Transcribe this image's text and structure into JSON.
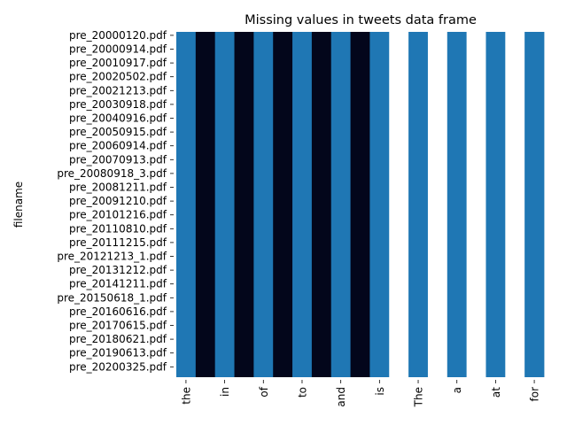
{
  "chart_data": {
    "type": "heatmap",
    "title": "Missing values in tweets data frame",
    "xlabel": "",
    "ylabel": "filename",
    "columns": [
      "the",
      "",
      "in",
      "",
      "of",
      "",
      "to",
      "",
      "and",
      "",
      "is",
      "",
      "The",
      "",
      "a",
      "",
      "at",
      "",
      "for"
    ],
    "rows": [
      "pre_20000120.pdf",
      "",
      "pre_20000914.pdf",
      "",
      "pre_20010917.pdf",
      "",
      "pre_20020502.pdf",
      "",
      "pre_20021213.pdf",
      "",
      "pre_20030918.pdf",
      "",
      "pre_20040916.pdf",
      "",
      "pre_20050915.pdf",
      "",
      "pre_20060914.pdf",
      "",
      "pre_20070913.pdf",
      "",
      "pre_20080918_3.pdf",
      "",
      "pre_20081211.pdf",
      "",
      "pre_20091210.pdf",
      "",
      "pre_20101216.pdf",
      "",
      "pre_20110810.pdf",
      "",
      "pre_20111215.pdf",
      "",
      "pre_20121213_1.pdf",
      "",
      "pre_20131212.pdf",
      "",
      "pre_20141211.pdf",
      "",
      "pre_20150618_1.pdf",
      "",
      "pre_20160616.pdf",
      "",
      "pre_20170615.pdf",
      "",
      "pre_20180621.pdf",
      "",
      "pre_20190613.pdf",
      "",
      "pre_20200325.pdf",
      ""
    ],
    "column_values": [
      "present",
      "missing",
      "present",
      "missing",
      "present",
      "missing",
      "present",
      "missing",
      "present",
      "missing",
      "present",
      "blank",
      "present",
      "blank",
      "present",
      "blank",
      "present",
      "blank",
      "present"
    ],
    "colors": {
      "present": "#1f77b4",
      "missing": "#03061b",
      "blank": "#ffffff"
    },
    "grid": false,
    "legend": "none"
  }
}
